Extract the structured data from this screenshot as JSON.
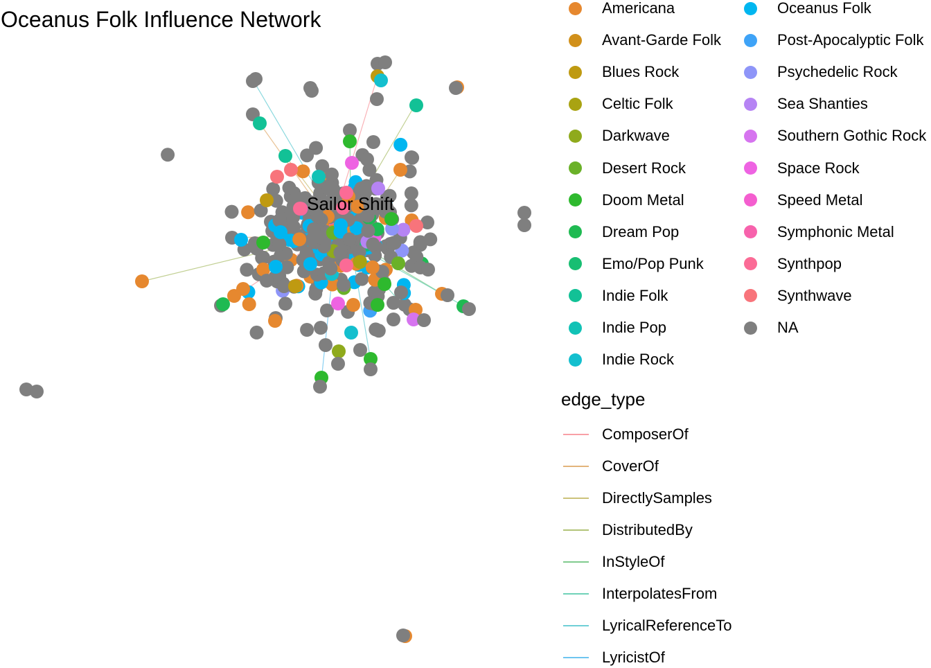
{
  "title": "Oceanus Folk Influence Network",
  "center_label": "Sailor Shift",
  "node_legend": {
    "title": "",
    "items": [
      {
        "label": "Americana",
        "color": "#E6882F"
      },
      {
        "label": "Avant-Garde Folk",
        "color": "#D1901A"
      },
      {
        "label": "Blues Rock",
        "color": "#BF9A11"
      },
      {
        "label": "Celtic Folk",
        "color": "#A9A312"
      },
      {
        "label": "Darkwave",
        "color": "#8FAA1C"
      },
      {
        "label": "Desert Rock",
        "color": "#6AB128"
      },
      {
        "label": "Doom Metal",
        "color": "#2EB92E"
      },
      {
        "label": "Dream Pop",
        "color": "#1FBA52"
      },
      {
        "label": "Emo/Pop Punk",
        "color": "#18BE72"
      },
      {
        "label": "Indie Folk",
        "color": "#12C196"
      },
      {
        "label": "Indie Pop",
        "color": "#11C2B6"
      },
      {
        "label": "Indie Rock",
        "color": "#14BFCE"
      },
      {
        "label": "Oceanus Folk",
        "color": "#00B6F0"
      },
      {
        "label": "Post-Apocalyptic Folk",
        "color": "#3EA3F7"
      },
      {
        "label": "Psychedelic Rock",
        "color": "#8E95F8"
      },
      {
        "label": "Sea Shanties",
        "color": "#B684F4"
      },
      {
        "label": "Southern Gothic Rock",
        "color": "#D674EF"
      },
      {
        "label": "Space Rock",
        "color": "#EE63E2"
      },
      {
        "label": "Speed Metal",
        "color": "#F45ECF"
      },
      {
        "label": "Symphonic Metal",
        "color": "#F762AC"
      },
      {
        "label": "Synthpop",
        "color": "#FB6B96"
      },
      {
        "label": "Synthwave",
        "color": "#F8747B"
      },
      {
        "label": "NA",
        "color": "#7F7F7F"
      }
    ]
  },
  "edge_legend": {
    "title": "edge_type",
    "items": [
      {
        "label": "ComposerOf",
        "color": "#F8A0A6"
      },
      {
        "label": "CoverOf",
        "color": "#E3B47B"
      },
      {
        "label": "DirectlySamples",
        "color": "#CCC27A"
      },
      {
        "label": "DistributedBy",
        "color": "#B2C478"
      },
      {
        "label": "InStyleOf",
        "color": "#7FCB8E"
      },
      {
        "label": "InterpolatesFrom",
        "color": "#6FD2B8"
      },
      {
        "label": "LyricalReferenceTo",
        "color": "#6FCFD6"
      },
      {
        "label": "LyricistOf",
        "color": "#6EC5F0"
      }
    ]
  }
}
